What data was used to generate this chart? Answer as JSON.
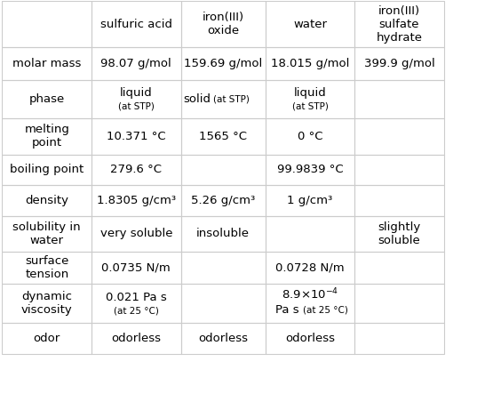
{
  "col_headers": [
    "sulfuric acid",
    "iron(III)\noxide",
    "water",
    "iron(III)\nsulfate\nhydrate"
  ],
  "row_headers": [
    "molar mass",
    "phase",
    "melting\npoint",
    "boiling point",
    "density",
    "solubility in\nwater",
    "surface\ntension",
    "dynamic\nviscosity",
    "odor"
  ],
  "cells": [
    [
      "98.07 g/mol",
      "159.69 g/mol",
      "18.015 g/mol",
      "399.9 g/mol"
    ],
    [
      "liquid\n(at STP)",
      "solid  (at STP)",
      "liquid\n(at STP)",
      ""
    ],
    [
      "10.371 °C",
      "1565 °C",
      "0 °C",
      ""
    ],
    [
      "279.6 °C",
      "",
      "99.9839 °C",
      ""
    ],
    [
      "1.8305 g/cm³",
      "5.26 g/cm³",
      "1 g/cm³",
      ""
    ],
    [
      "very soluble",
      "insoluble",
      "",
      "slightly\nsoluble"
    ],
    [
      "0.0735 N/m",
      "",
      "0.0728 N/m",
      ""
    ],
    [
      "0.021 Pa s\n(at 25 °C)",
      "",
      "8.9×10⁻⁴\nPa s  (at 25 °C)",
      ""
    ],
    [
      "odorless",
      "odorless",
      "odorless",
      ""
    ]
  ],
  "background_color": "#ffffff",
  "line_color": "#cccccc",
  "text_color": "#000000",
  "font_size": 9.5,
  "small_font_size": 7.5
}
